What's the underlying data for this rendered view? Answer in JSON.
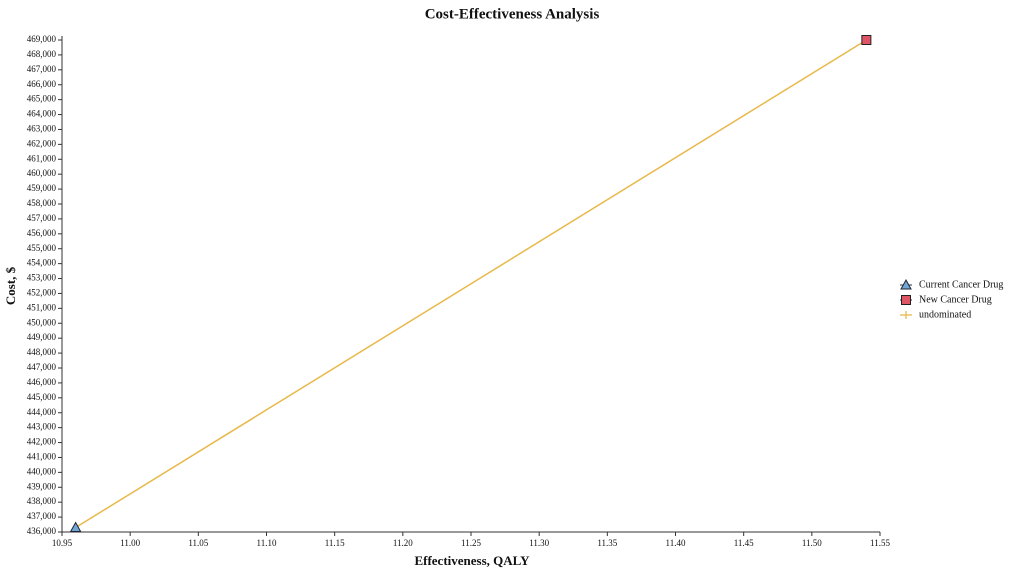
{
  "chart_data": {
    "type": "scatter",
    "title": "Cost-Effectiveness Analysis",
    "x_label": "Effectiveness, QALY",
    "y_label": "Cost, $",
    "xlim": [
      10.95,
      11.55
    ],
    "xticks": [
      10.95,
      {
        "value": 11,
        "label": "11.00"
      },
      11.05,
      {
        "value": 11.1,
        "label": "11.10"
      },
      11.15,
      {
        "value": 11.2,
        "label": "11.20"
      },
      11.25,
      {
        "value": 11.3,
        "label": "11.30"
      },
      11.35,
      {
        "value": 11.4,
        "label": "11.40"
      },
      11.45,
      {
        "value": 11.5,
        "label": "11.50"
      },
      11.55
    ],
    "ylim": [
      436000,
      469000
    ],
    "yticks": [
      {
        "value": 436000,
        "label": "436,000"
      },
      {
        "value": 437000,
        "label": "437,000"
      },
      {
        "value": 438000,
        "label": "438,000"
      },
      {
        "value": 439000,
        "label": "439,000"
      },
      {
        "value": 440000,
        "label": "440,000"
      },
      {
        "value": 441000,
        "label": "441,000"
      },
      {
        "value": 442000,
        "label": "442,000"
      },
      {
        "value": 443000,
        "label": "443,000"
      },
      {
        "value": 444000,
        "label": "444,000"
      },
      {
        "value": 445000,
        "label": "445,000"
      },
      {
        "value": 446000,
        "label": "446,000"
      },
      {
        "value": 447000,
        "label": "447,000"
      },
      {
        "value": 448000,
        "label": "448,000"
      },
      {
        "value": 449000,
        "label": "449,000"
      },
      {
        "value": 450000,
        "label": "450,000"
      },
      {
        "value": 451000,
        "label": "451,000"
      },
      {
        "value": 452000,
        "label": "452,000"
      },
      {
        "value": 453000,
        "label": "453,000"
      },
      {
        "value": 454000,
        "label": "454,000"
      },
      {
        "value": 455000,
        "label": "455,000"
      },
      {
        "value": 456000,
        "label": "456,000"
      },
      {
        "value": 457000,
        "label": "457,000"
      },
      {
        "value": 458000,
        "label": "458,000"
      },
      {
        "value": 459000,
        "label": "459,000"
      },
      {
        "value": 460000,
        "label": "460,000"
      },
      {
        "value": 461000,
        "label": "461,000"
      },
      {
        "value": 462000,
        "label": "462,000"
      },
      {
        "value": 463000,
        "label": "463,000"
      },
      {
        "value": 464000,
        "label": "464,000"
      },
      {
        "value": 465000,
        "label": "465,000"
      },
      {
        "value": 466000,
        "label": "466,000"
      },
      {
        "value": 467000,
        "label": "467,000"
      },
      {
        "value": 468000,
        "label": "468,000"
      },
      {
        "value": 469000,
        "label": "469,000"
      }
    ],
    "legend": "right",
    "series": [
      {
        "name": "Current Cancer Drug",
        "marker": "triangle",
        "color": "#6fa8d6",
        "x": [
          10.96
        ],
        "values": [
          436300
        ]
      },
      {
        "name": "New Cancer Drug",
        "marker": "square",
        "color": "#e05566",
        "x": [
          11.54
        ],
        "values": [
          469000
        ]
      },
      {
        "name": "undominated",
        "marker": "line",
        "color": "#e8b84a",
        "x": [
          10.96,
          11.54
        ],
        "values": [
          436300,
          469000
        ]
      }
    ]
  }
}
